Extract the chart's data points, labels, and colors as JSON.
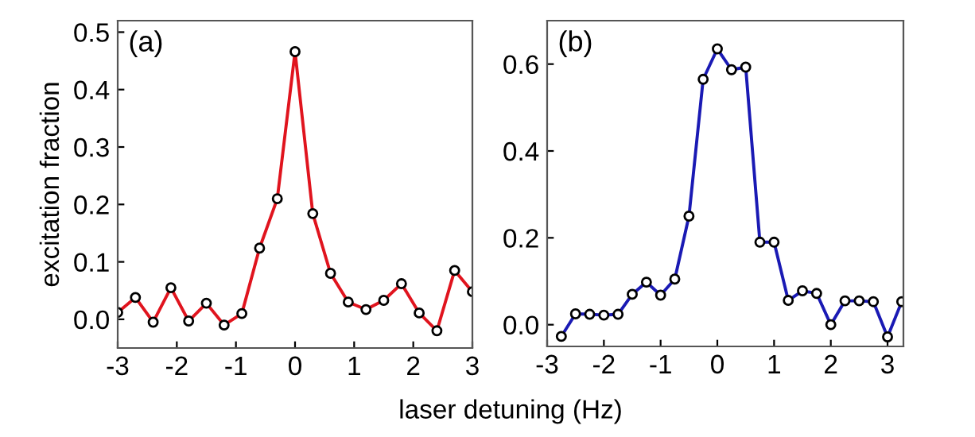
{
  "chart_data": [
    {
      "type": "line",
      "ylabel": "excitation fraction",
      "xlabel": "laser detuning (Hz)",
      "annotations": [
        "(a)"
      ],
      "marker": "circle",
      "line_style": "solid",
      "grid": false,
      "legend": false,
      "x": [
        -3,
        -2.7,
        -2.4,
        -2.1,
        -1.8,
        -1.5,
        -1.2,
        -0.9,
        -0.6,
        -0.3,
        0,
        0.3,
        0.6,
        0.9,
        1.2,
        1.5,
        1.8,
        2.1,
        2.4,
        2.7,
        3.0
      ],
      "series": [
        {
          "color": "#e0141e",
          "values": [
            0.012,
            0.038,
            -0.005,
            0.055,
            -0.003,
            0.028,
            -0.01,
            0.01,
            0.124,
            0.21,
            0.466,
            0.184,
            0.08,
            0.03,
            0.017,
            0.033,
            0.062,
            0.011,
            -0.02,
            0.085,
            0.048
          ]
        }
      ],
      "xlim": [
        -3,
        3
      ],
      "ylim": [
        -0.05,
        0.52
      ],
      "xticks": [
        -3,
        -2,
        -1,
        0,
        1,
        2,
        3
      ],
      "yticks": [
        {
          "value": 0,
          "label": "0.0"
        },
        0.1,
        0.2,
        0.3,
        0.4,
        0.5
      ]
    },
    {
      "type": "line",
      "annotations": [
        "(b)"
      ],
      "marker": "circle",
      "line_style": "solid",
      "grid": false,
      "legend": false,
      "x": [
        -2.75,
        -2.5,
        -2.25,
        -2,
        -1.75,
        -1.5,
        -1.25,
        -1,
        -0.75,
        -0.5,
        -0.25,
        0,
        0.25,
        0.5,
        0.75,
        1,
        1.25,
        1.5,
        1.75,
        2,
        2.25,
        2.5,
        2.75,
        3,
        3.25
      ],
      "series": [
        {
          "color": "#1a1ab4",
          "values": [
            -0.027,
            0.025,
            0.024,
            0.022,
            0.024,
            0.07,
            0.098,
            0.068,
            0.105,
            0.25,
            0.565,
            0.635,
            0.587,
            0.593,
            0.19,
            0.19,
            0.056,
            0.078,
            0.072,
            0.0,
            0.055,
            0.055,
            0.053,
            -0.028,
            0.053
          ]
        }
      ],
      "xlim": [
        -3,
        3.28
      ],
      "ylim": [
        -0.05,
        0.7
      ],
      "xticks": [
        -3,
        -2,
        -1,
        0,
        1,
        2,
        3
      ],
      "yticks": [
        {
          "value": 0,
          "label": "0.0"
        },
        {
          "value": 0.2,
          "label": "0.2"
        },
        {
          "value": 0.4,
          "label": "0.4"
        },
        {
          "value": 0.6,
          "label": "0.6"
        }
      ]
    }
  ]
}
